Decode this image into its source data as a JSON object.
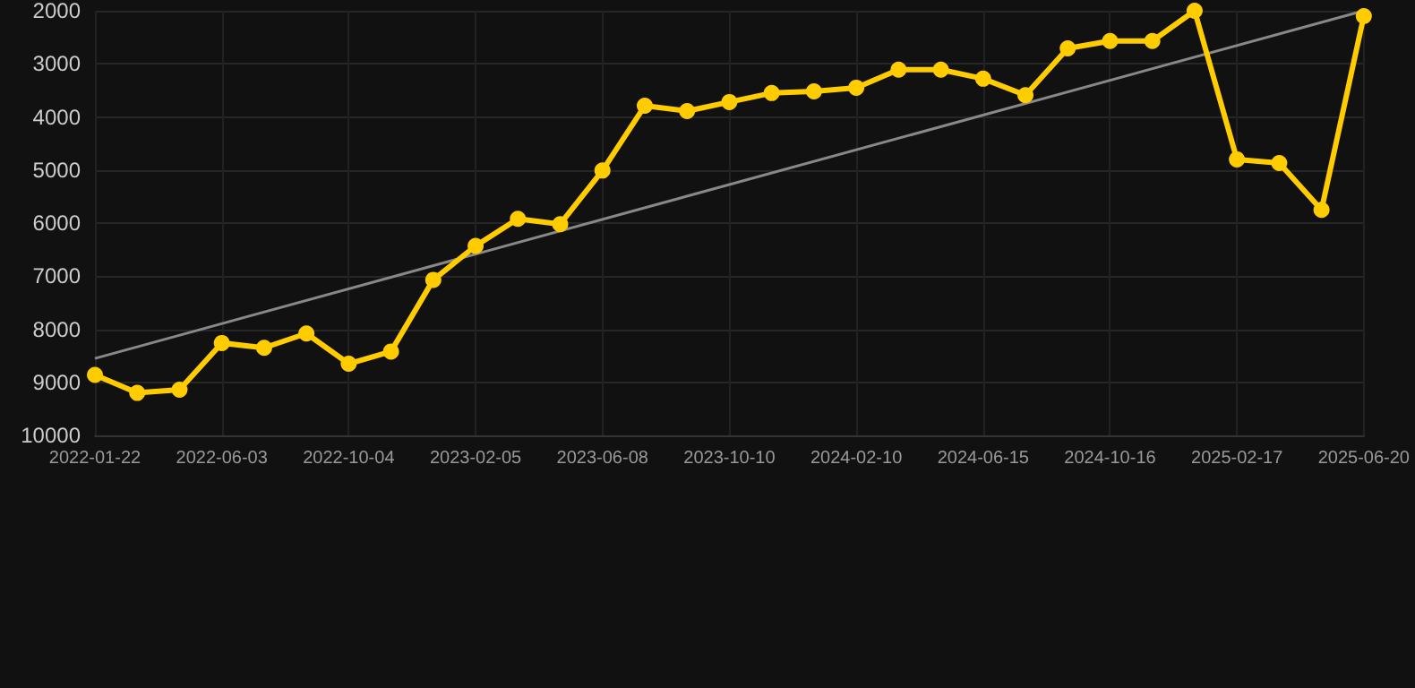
{
  "chart_data": {
    "type": "line",
    "categories": [
      "2022-01-22",
      null,
      null,
      "2022-06-03",
      null,
      null,
      "2022-10-04",
      null,
      null,
      "2023-02-05",
      null,
      null,
      "2023-06-08",
      null,
      null,
      "2023-10-10",
      null,
      null,
      "2024-02-10",
      null,
      null,
      "2024-06-15",
      null,
      null,
      "2024-10-16",
      null,
      null,
      "2025-02-17",
      null,
      null,
      "2025-06-20"
    ],
    "series": [
      {
        "color": "#ffcc00",
        "marker": "circle",
        "values": [
          8860,
          9200,
          9140,
          8260,
          8350,
          8080,
          8650,
          8420,
          7070,
          6430,
          5920,
          6020,
          5010,
          3790,
          3890,
          3720,
          3550,
          3520,
          3450,
          3110,
          3110,
          3280,
          3590,
          2710,
          2570,
          2570,
          2000,
          4800,
          4870,
          5750,
          2100
        ]
      },
      {
        "type": "line",
        "color": "#888888",
        "marker": "none",
        "values": [
          8550,
          null,
          null,
          null,
          null,
          null,
          null,
          null,
          null,
          null,
          null,
          null,
          null,
          null,
          null,
          null,
          null,
          null,
          null,
          null,
          null,
          null,
          null,
          null,
          null,
          null,
          null,
          null,
          null,
          null,
          2000
        ]
      }
    ],
    "ylim": [
      10000,
      2000
    ],
    "yticks": [
      2000,
      3000,
      4000,
      5000,
      6000,
      7000,
      8000,
      9000,
      10000
    ],
    "grid": true
  }
}
